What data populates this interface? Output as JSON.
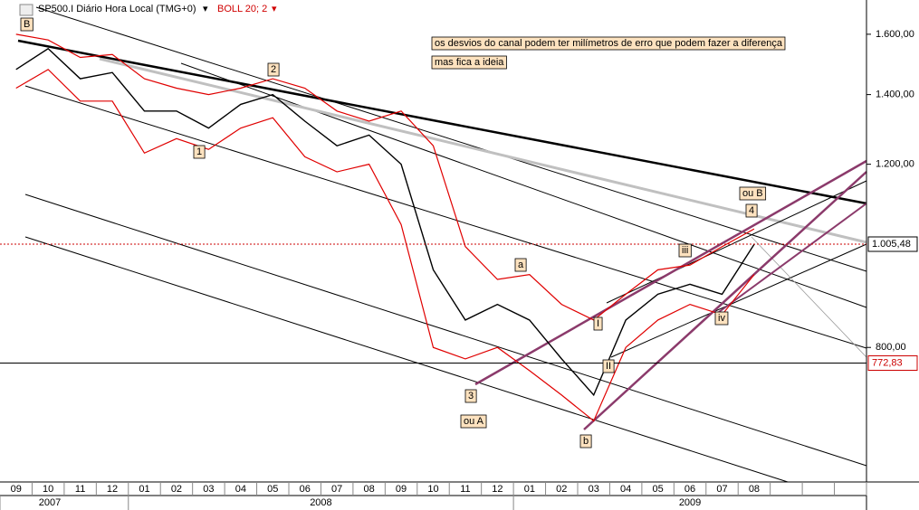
{
  "chart_data": {
    "type": "line",
    "title": "SP500.I Diário Hora Local (TMG+0)",
    "log_scale": true,
    "categories": [
      "09",
      "10",
      "11",
      "12",
      "01",
      "02",
      "03",
      "04",
      "05",
      "06",
      "07",
      "08",
      "09",
      "10",
      "11",
      "12",
      "01",
      "02",
      "03",
      "04",
      "05",
      "06",
      "07",
      "08",
      null,
      null,
      null
    ],
    "years": [
      "2007",
      "2008",
      "2009"
    ],
    "series": [
      {
        "name": "SP500.I Diário Hora Local (TMG+0)",
        "color": "#000000",
        "values": [
          1480,
          1550,
          1450,
          1470,
          1350,
          1350,
          1300,
          1370,
          1400,
          1320,
          1250,
          1280,
          1200,
          950,
          850,
          880,
          850,
          780,
          720,
          850,
          900,
          920,
          900,
          1005,
          null,
          null,
          null
        ]
      },
      {
        "name": "BOLL 20; 2",
        "color": "#e00000",
        "values": [
          1600,
          1580,
          1520,
          1530,
          1450,
          1420,
          1400,
          1420,
          1450,
          1420,
          1350,
          1320,
          1350,
          1250,
          1000,
          930,
          940,
          880,
          850,
          900,
          950,
          960,
          1000,
          1040,
          null,
          null,
          null
        ],
        "lower": [
          1420,
          1480,
          1380,
          1380,
          1230,
          1270,
          1240,
          1300,
          1330,
          1220,
          1180,
          1200,
          1050,
          800,
          780,
          800,
          760,
          720,
          680,
          800,
          850,
          880,
          860,
          940,
          null,
          null,
          null
        ]
      }
    ],
    "ylim": [
      594,
      1726
    ],
    "yticks": [
      {
        "value": 1600,
        "label": "1.600,00"
      },
      {
        "value": 1400,
        "label": "1.400,00"
      },
      {
        "value": 1200,
        "label": "1.200,00"
      },
      {
        "value": 800,
        "label": "800,00"
      }
    ],
    "levels": [
      {
        "value": 1005.48,
        "label": "1.005,48",
        "color": "#cc0000",
        "style": "dotted"
      },
      {
        "value": 772.83,
        "label": "772,83",
        "color": "#000000",
        "style": "solid"
      }
    ],
    "wave_labels": [
      "B",
      "1",
      "2",
      "3",
      "ou A",
      "a",
      "b",
      "I",
      "II",
      "iii",
      "iv",
      "4",
      "ou B"
    ],
    "notes": [
      "os desvios do canal podem ter milímetros de erro que podem fazer a diferença",
      "mas fica a ideia"
    ]
  }
}
